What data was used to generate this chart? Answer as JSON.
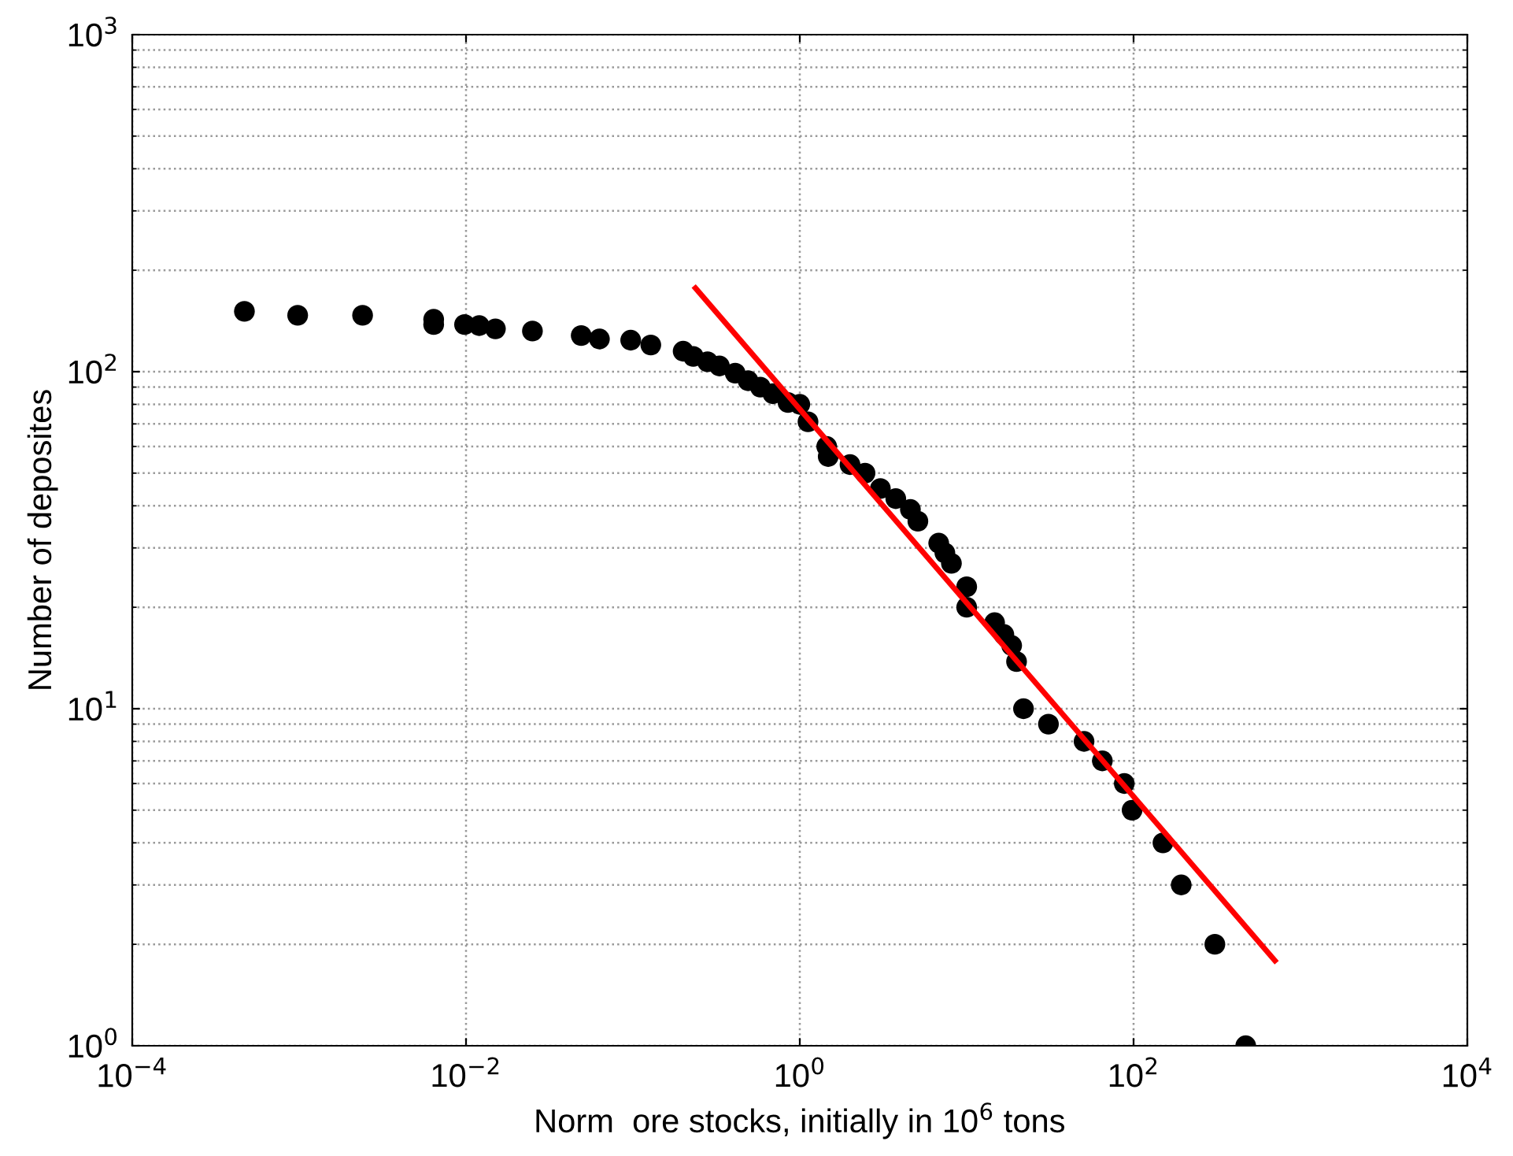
{
  "chart_data": {
    "type": "scatter",
    "xlabel": "Norm  ore stocks, initially in 10$^{6}$ tons",
    "ylabel": "Number of deposites",
    "log": "xy",
    "grid": true,
    "marker": "circle",
    "xlim": [
      0.0001,
      10000
    ],
    "ylim": [
      1,
      1000
    ],
    "xticks": [
      {
        "value": 0.0001,
        "label": "10$^{−4}$"
      },
      {
        "value": 0.01,
        "label": "10$^{−2}$"
      },
      {
        "value": 1,
        "label": "10$^{0}$"
      },
      {
        "value": 100,
        "label": "10$^{2}$"
      },
      {
        "value": 10000,
        "label": "10$^{4}$"
      }
    ],
    "yticks": [
      {
        "value": 1,
        "label": "10$^{0}$"
      },
      {
        "value": 10,
        "label": "10$^{1}$"
      },
      {
        "value": 100,
        "label": "10$^{2}$"
      },
      {
        "value": 1000,
        "label": "10$^{3}$"
      }
    ],
    "series": [
      {
        "color": "#000000",
        "x": [
          0.00047,
          0.00098,
          0.0024,
          0.0064,
          0.0064,
          0.0098,
          0.012,
          0.015,
          0.025,
          0.049,
          0.063,
          0.097,
          0.128,
          0.2,
          0.23,
          0.28,
          0.33,
          0.41,
          0.49,
          0.58,
          0.69,
          0.85,
          1.0,
          1.12,
          1.45,
          1.48,
          2.0,
          2.46,
          3.04,
          3.76,
          4.6,
          5.1,
          6.8,
          7.4,
          8.1,
          10.0,
          10.0,
          14.7,
          16.7,
          18.6,
          19.9,
          21.9,
          30.9,
          50.5,
          65,
          88,
          98,
          150,
          193,
          307,
          470
        ],
        "values": [
          151,
          147,
          147,
          143,
          138,
          138,
          137,
          134,
          132,
          128,
          125,
          124,
          120,
          115,
          111,
          107,
          104,
          99,
          94,
          90,
          86,
          81,
          80,
          71,
          60,
          56,
          53,
          50,
          45,
          42,
          39,
          36,
          31,
          29,
          27,
          23,
          20,
          18,
          16.6,
          15.4,
          13.8,
          10,
          9,
          8,
          7,
          6,
          5,
          4,
          3,
          2,
          1
        ]
      },
      {
        "type": "line",
        "color": "#ff0000",
        "marker": "none",
        "x": [
          0.237,
          703
        ],
        "values": [
          177,
          1.79
        ]
      }
    ]
  }
}
